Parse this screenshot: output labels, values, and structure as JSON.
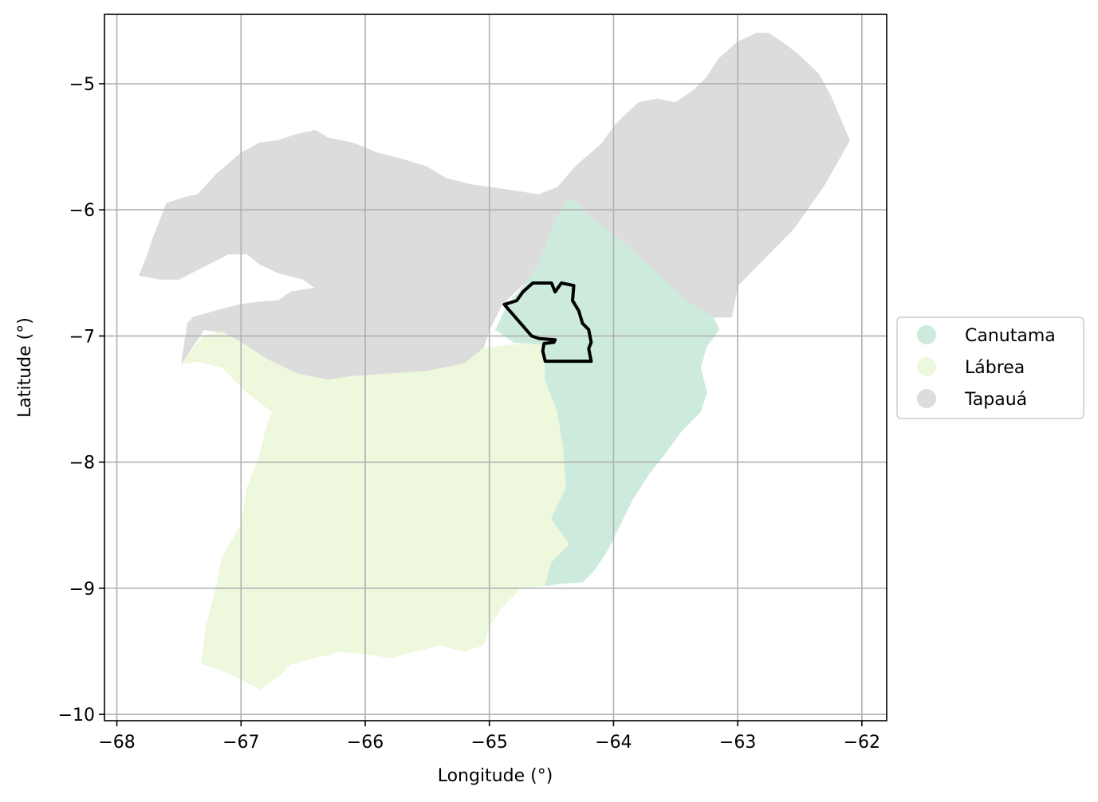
{
  "chart_data": {
    "type": "map",
    "xlabel": "Longitude (°)",
    "ylabel": "Latitude (°)",
    "xlim": [
      -68.1,
      -61.8
    ],
    "ylim": [
      -10.05,
      -4.45
    ],
    "grid": true,
    "legend_placement": "center-right, outside plot",
    "xticks": [
      -68,
      -67,
      -66,
      -65,
      -64,
      -63,
      -62
    ],
    "yticks": [
      -5,
      -6,
      -7,
      -8,
      -9,
      -10
    ],
    "xtick_labels": [
      "−68",
      "−67",
      "−66",
      "−65",
      "−64",
      "−63",
      "−62"
    ],
    "ytick_labels": [
      "−5",
      "−6",
      "−7",
      "−8",
      "−9",
      "−10"
    ],
    "regions": [
      {
        "name": "Tapauá",
        "color": "#dcdcdc",
        "polygon": [
          [
            -67.82,
            -6.52
          ],
          [
            -67.75,
            -6.35
          ],
          [
            -67.7,
            -6.2
          ],
          [
            -67.6,
            -5.95
          ],
          [
            -67.45,
            -5.9
          ],
          [
            -67.35,
            -5.88
          ],
          [
            -67.2,
            -5.72
          ],
          [
            -67.0,
            -5.55
          ],
          [
            -66.85,
            -5.47
          ],
          [
            -66.7,
            -5.45
          ],
          [
            -66.55,
            -5.4
          ],
          [
            -66.4,
            -5.37
          ],
          [
            -66.3,
            -5.43
          ],
          [
            -66.1,
            -5.47
          ],
          [
            -65.9,
            -5.55
          ],
          [
            -65.7,
            -5.6
          ],
          [
            -65.5,
            -5.66
          ],
          [
            -65.35,
            -5.75
          ],
          [
            -65.15,
            -5.8
          ],
          [
            -65.0,
            -5.82
          ],
          [
            -64.8,
            -5.85
          ],
          [
            -64.6,
            -5.88
          ],
          [
            -64.45,
            -5.82
          ],
          [
            -64.3,
            -5.65
          ],
          [
            -64.1,
            -5.48
          ],
          [
            -63.98,
            -5.32
          ],
          [
            -63.8,
            -5.15
          ],
          [
            -63.65,
            -5.12
          ],
          [
            -63.5,
            -5.15
          ],
          [
            -63.35,
            -5.05
          ],
          [
            -63.25,
            -4.95
          ],
          [
            -63.15,
            -4.8
          ],
          [
            -63.0,
            -4.67
          ],
          [
            -62.85,
            -4.6
          ],
          [
            -62.75,
            -4.6
          ],
          [
            -62.6,
            -4.7
          ],
          [
            -62.5,
            -4.78
          ],
          [
            -62.35,
            -4.92
          ],
          [
            -62.25,
            -5.1
          ],
          [
            -62.1,
            -5.45
          ],
          [
            -62.3,
            -5.8
          ],
          [
            -62.55,
            -6.15
          ],
          [
            -62.8,
            -6.4
          ],
          [
            -63.0,
            -6.6
          ],
          [
            -63.05,
            -6.85
          ],
          [
            -63.2,
            -6.85
          ],
          [
            -63.4,
            -6.75
          ],
          [
            -63.6,
            -6.55
          ],
          [
            -63.8,
            -6.38
          ],
          [
            -64.0,
            -6.22
          ],
          [
            -64.2,
            -6.07
          ],
          [
            -64.35,
            -5.97
          ],
          [
            -64.45,
            -6.05
          ],
          [
            -64.55,
            -6.3
          ],
          [
            -64.65,
            -6.52
          ],
          [
            -64.9,
            -6.75
          ],
          [
            -65.0,
            -6.95
          ],
          [
            -65.05,
            -7.1
          ],
          [
            -65.2,
            -7.22
          ],
          [
            -65.5,
            -7.28
          ],
          [
            -65.8,
            -7.3
          ],
          [
            -66.1,
            -7.32
          ],
          [
            -66.3,
            -7.35
          ],
          [
            -66.55,
            -7.3
          ],
          [
            -66.8,
            -7.18
          ],
          [
            -67.0,
            -7.05
          ],
          [
            -67.15,
            -6.97
          ],
          [
            -67.3,
            -6.95
          ],
          [
            -67.48,
            -7.22
          ],
          [
            -67.43,
            -6.9
          ],
          [
            -67.38,
            -6.85
          ],
          [
            -67.2,
            -6.8
          ],
          [
            -67.0,
            -6.75
          ],
          [
            -66.85,
            -6.73
          ],
          [
            -66.7,
            -6.72
          ],
          [
            -66.6,
            -6.65
          ],
          [
            -66.4,
            -6.62
          ],
          [
            -66.5,
            -6.55
          ],
          [
            -66.7,
            -6.5
          ],
          [
            -66.85,
            -6.43
          ],
          [
            -66.95,
            -6.35
          ],
          [
            -67.1,
            -6.35
          ],
          [
            -67.3,
            -6.45
          ],
          [
            -67.5,
            -6.55
          ],
          [
            -67.65,
            -6.55
          ]
        ]
      },
      {
        "name": "Canutama",
        "color": "#cdebdd",
        "polygon": [
          [
            -64.95,
            -6.95
          ],
          [
            -64.85,
            -6.75
          ],
          [
            -64.72,
            -6.6
          ],
          [
            -64.62,
            -6.45
          ],
          [
            -64.55,
            -6.3
          ],
          [
            -64.48,
            -6.1
          ],
          [
            -64.38,
            -5.93
          ],
          [
            -64.3,
            -5.93
          ],
          [
            -64.2,
            -6.05
          ],
          [
            -64.0,
            -6.2
          ],
          [
            -63.8,
            -6.37
          ],
          [
            -63.6,
            -6.55
          ],
          [
            -63.4,
            -6.73
          ],
          [
            -63.2,
            -6.85
          ],
          [
            -63.15,
            -6.95
          ],
          [
            -63.25,
            -7.08
          ],
          [
            -63.3,
            -7.25
          ],
          [
            -63.25,
            -7.45
          ],
          [
            -63.3,
            -7.6
          ],
          [
            -63.45,
            -7.75
          ],
          [
            -63.6,
            -7.95
          ],
          [
            -63.72,
            -8.1
          ],
          [
            -63.85,
            -8.3
          ],
          [
            -63.95,
            -8.5
          ],
          [
            -64.05,
            -8.7
          ],
          [
            -64.15,
            -8.85
          ],
          [
            -64.25,
            -8.95
          ],
          [
            -64.4,
            -8.96
          ],
          [
            -64.55,
            -8.98
          ],
          [
            -64.5,
            -8.8
          ],
          [
            -64.35,
            -8.65
          ],
          [
            -64.5,
            -8.45
          ],
          [
            -64.38,
            -8.2
          ],
          [
            -64.4,
            -7.9
          ],
          [
            -64.45,
            -7.6
          ],
          [
            -64.55,
            -7.35
          ],
          [
            -64.55,
            -7.07
          ],
          [
            -64.8,
            -7.05
          ]
        ]
      },
      {
        "name": "Lábrea",
        "color": "#eef8dc",
        "polygon": [
          [
            -67.48,
            -7.22
          ],
          [
            -67.3,
            -7.0
          ],
          [
            -67.15,
            -6.97
          ],
          [
            -67.0,
            -7.05
          ],
          [
            -66.8,
            -7.18
          ],
          [
            -66.55,
            -7.3
          ],
          [
            -66.3,
            -7.35
          ],
          [
            -66.1,
            -7.32
          ],
          [
            -65.8,
            -7.3
          ],
          [
            -65.5,
            -7.28
          ],
          [
            -65.2,
            -7.22
          ],
          [
            -65.05,
            -7.1
          ],
          [
            -64.8,
            -7.07
          ],
          [
            -64.55,
            -7.07
          ],
          [
            -64.55,
            -7.35
          ],
          [
            -64.45,
            -7.6
          ],
          [
            -64.4,
            -7.9
          ],
          [
            -64.38,
            -8.2
          ],
          [
            -64.5,
            -8.45
          ],
          [
            -64.35,
            -8.65
          ],
          [
            -64.5,
            -8.8
          ],
          [
            -64.55,
            -8.98
          ],
          [
            -64.75,
            -9.0
          ],
          [
            -64.9,
            -9.15
          ],
          [
            -65.0,
            -9.3
          ],
          [
            -65.05,
            -9.45
          ],
          [
            -65.2,
            -9.5
          ],
          [
            -65.4,
            -9.45
          ],
          [
            -65.6,
            -9.5
          ],
          [
            -65.8,
            -9.55
          ],
          [
            -66.0,
            -9.52
          ],
          [
            -66.2,
            -9.5
          ],
          [
            -66.4,
            -9.55
          ],
          [
            -66.6,
            -9.6
          ],
          [
            -66.7,
            -9.7
          ],
          [
            -66.85,
            -9.8
          ],
          [
            -67.0,
            -9.72
          ],
          [
            -67.15,
            -9.65
          ],
          [
            -67.32,
            -9.6
          ],
          [
            -67.28,
            -9.3
          ],
          [
            -67.2,
            -9.0
          ],
          [
            -67.15,
            -8.75
          ],
          [
            -67.0,
            -8.5
          ],
          [
            -66.95,
            -8.2
          ],
          [
            -66.85,
            -7.95
          ],
          [
            -66.8,
            -7.75
          ],
          [
            -66.75,
            -7.6
          ],
          [
            -66.95,
            -7.45
          ],
          [
            -67.15,
            -7.25
          ],
          [
            -67.35,
            -7.2
          ]
        ]
      }
    ],
    "outline": {
      "color": "#000000",
      "polygon": [
        [
          -64.88,
          -6.75
        ],
        [
          -64.78,
          -6.72
        ],
        [
          -64.73,
          -6.65
        ],
        [
          -64.65,
          -6.58
        ],
        [
          -64.5,
          -6.58
        ],
        [
          -64.47,
          -6.65
        ],
        [
          -64.42,
          -6.58
        ],
        [
          -64.32,
          -6.6
        ],
        [
          -64.33,
          -6.72
        ],
        [
          -64.28,
          -6.8
        ],
        [
          -64.25,
          -6.9
        ],
        [
          -64.2,
          -6.95
        ],
        [
          -64.18,
          -7.05
        ],
        [
          -64.2,
          -7.1
        ],
        [
          -64.18,
          -7.2
        ],
        [
          -64.38,
          -7.2
        ],
        [
          -64.55,
          -7.2
        ],
        [
          -64.57,
          -7.12
        ],
        [
          -64.56,
          -7.06
        ],
        [
          -64.48,
          -7.05
        ],
        [
          -64.47,
          -7.03
        ],
        [
          -64.6,
          -7.02
        ],
        [
          -64.66,
          -7.0
        ]
      ]
    },
    "legend": [
      {
        "label": "Canutama",
        "color": "#cdebdd"
      },
      {
        "label": "Lábrea",
        "color": "#eef8dc"
      },
      {
        "label": "Tapauá",
        "color": "#dcdcdc"
      }
    ]
  }
}
